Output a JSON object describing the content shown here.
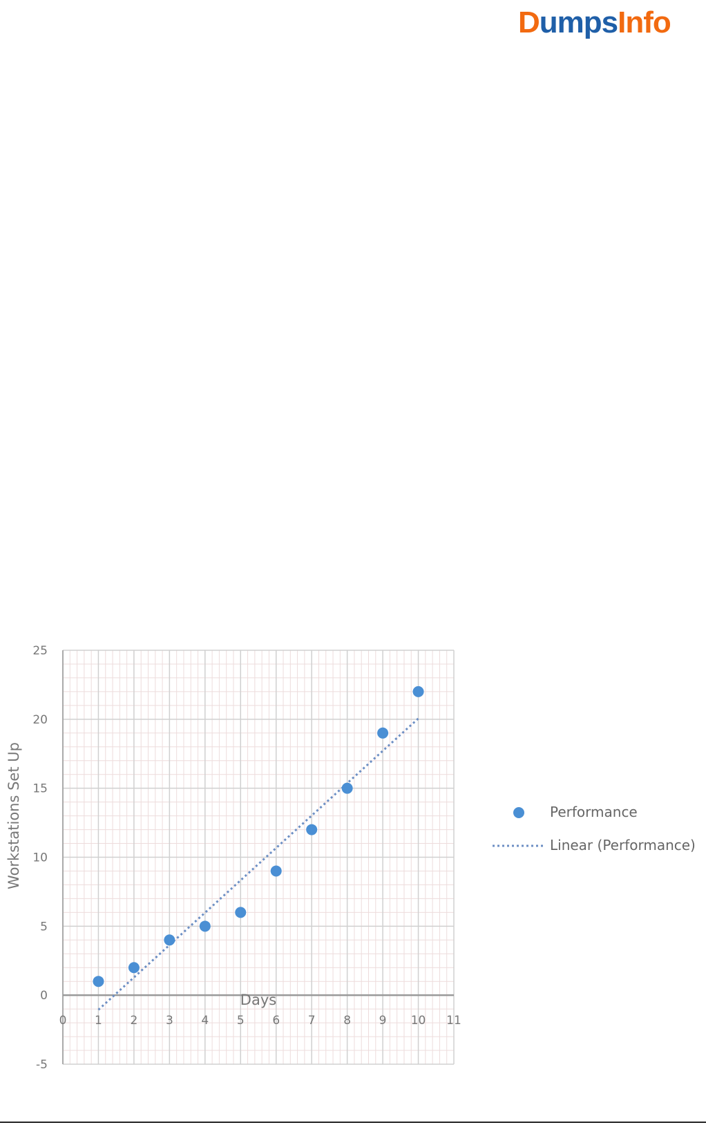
{
  "logo": {
    "part1": "D",
    "part2": "umps",
    "part3": "Info",
    "colors": {
      "blue": "#1f5fa8",
      "orange": "#f26a10"
    }
  },
  "chart_data": {
    "type": "scatter",
    "title": "",
    "xlabel": "Days",
    "ylabel": "Workstations Set Up",
    "xlim": [
      0,
      11
    ],
    "ylim": [
      -5,
      25
    ],
    "xticks": [
      "0",
      "1",
      "2",
      "3",
      "4",
      "5",
      "6",
      "7",
      "8",
      "9",
      "10",
      "11"
    ],
    "yticks": [
      "-5",
      "0",
      "5",
      "10",
      "15",
      "20",
      "25"
    ],
    "grid": true,
    "legend_position": "right",
    "series": [
      {
        "name": "Performance",
        "color": "#4a8fd4",
        "x": [
          1,
          2,
          3,
          4,
          5,
          6,
          7,
          8,
          9,
          10
        ],
        "y": [
          1,
          2,
          4,
          5,
          6,
          9,
          12,
          15,
          19,
          22
        ]
      }
    ],
    "trendline": {
      "name": "Linear (Performance)",
      "type": "linear",
      "style": "dotted",
      "color": "#6d8fc4"
    }
  }
}
